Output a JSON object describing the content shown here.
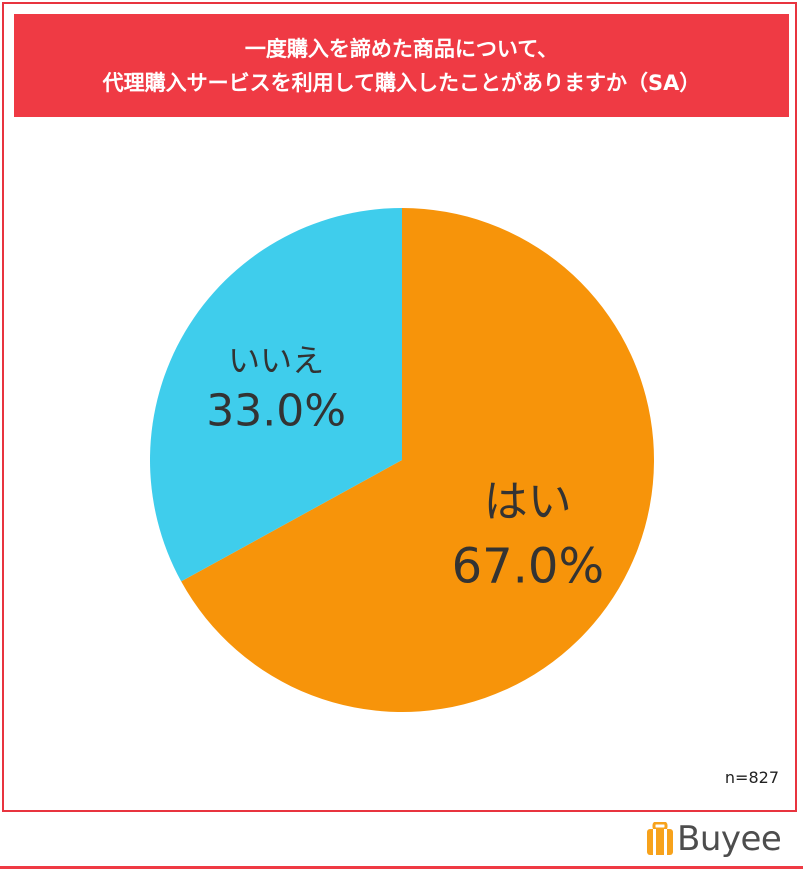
{
  "title": {
    "line1": "一度購入を諦めた商品について、",
    "line2": "代理購入サービスを利用して購入したことがありますか（SA）"
  },
  "chart_data": {
    "type": "pie",
    "slices": [
      {
        "label": "はい",
        "value": 67.0,
        "value_label": "67.0%",
        "color": "#f7940a"
      },
      {
        "label": "いいえ",
        "value": 33.0,
        "value_label": "33.0%",
        "color": "#3fcdec"
      }
    ],
    "start_angle_deg": 0,
    "direction": "clockwise"
  },
  "sample_size": "n=827",
  "brand": {
    "name": "Buyee",
    "accent": "#ef3a44",
    "logo_orange": "#f7a21b"
  }
}
